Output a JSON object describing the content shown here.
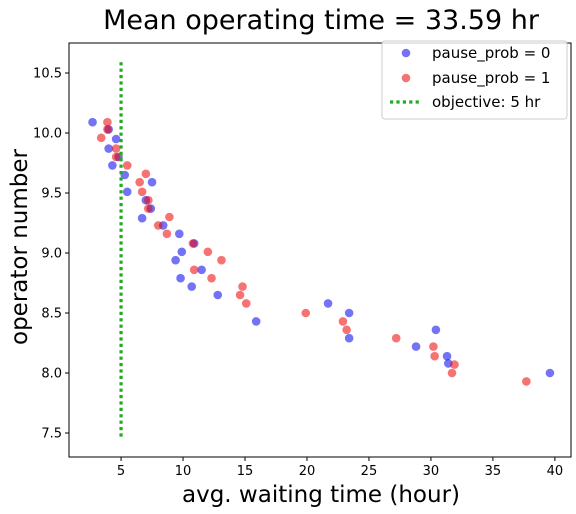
{
  "chart_data": {
    "type": "scatter",
    "title": "Mean operating time = 33.59 hr",
    "xlabel": "avg. waiting time (hour)",
    "ylabel": "operator number",
    "xlim": [
      0.8,
      41.3
    ],
    "ylim": [
      7.3,
      10.75
    ],
    "xticks": [
      5,
      10,
      15,
      20,
      25,
      30,
      35,
      40
    ],
    "yticks": [
      7.5,
      8.0,
      8.5,
      9.0,
      9.5,
      10.0,
      10.5
    ],
    "xtick_labels": [
      "5",
      "10",
      "15",
      "20",
      "25",
      "30",
      "35",
      "40"
    ],
    "ytick_labels": [
      "7.5",
      "8.0",
      "8.5",
      "9.0",
      "9.5",
      "10.0",
      "10.5"
    ],
    "grid": false,
    "legend_position": "top-right",
    "series": [
      {
        "name": "pause_prob = 0",
        "color": "#0000ee",
        "points": [
          [
            2.7,
            10.09
          ],
          [
            4.0,
            10.03
          ],
          [
            4.6,
            9.95
          ],
          [
            4.0,
            9.87
          ],
          [
            4.8,
            9.8
          ],
          [
            4.3,
            9.73
          ],
          [
            5.3,
            9.65
          ],
          [
            5.5,
            9.51
          ],
          [
            7.5,
            9.59
          ],
          [
            7.0,
            9.44
          ],
          [
            7.4,
            9.37
          ],
          [
            6.7,
            9.29
          ],
          [
            8.4,
            9.23
          ],
          [
            9.7,
            9.16
          ],
          [
            10.9,
            9.08
          ],
          [
            9.9,
            9.01
          ],
          [
            9.4,
            8.94
          ],
          [
            11.5,
            8.86
          ],
          [
            9.8,
            8.79
          ],
          [
            10.7,
            8.72
          ],
          [
            12.8,
            8.65
          ],
          [
            15.9,
            8.43
          ],
          [
            21.7,
            8.58
          ],
          [
            23.4,
            8.5
          ],
          [
            23.4,
            8.29
          ],
          [
            28.8,
            8.22
          ],
          [
            30.4,
            8.36
          ],
          [
            31.3,
            8.14
          ],
          [
            31.4,
            8.08
          ],
          [
            39.6,
            8.0
          ]
        ]
      },
      {
        "name": "pause_prob = 1",
        "color": "#ee0000",
        "points": [
          [
            3.9,
            10.09
          ],
          [
            3.9,
            10.03
          ],
          [
            3.4,
            9.96
          ],
          [
            4.6,
            9.87
          ],
          [
            4.6,
            9.8
          ],
          [
            5.5,
            9.73
          ],
          [
            7.0,
            9.66
          ],
          [
            6.5,
            9.59
          ],
          [
            6.7,
            9.51
          ],
          [
            7.2,
            9.44
          ],
          [
            7.2,
            9.37
          ],
          [
            8.9,
            9.3
          ],
          [
            8.0,
            9.23
          ],
          [
            8.7,
            9.16
          ],
          [
            10.8,
            9.08
          ],
          [
            12.0,
            9.01
          ],
          [
            13.1,
            8.94
          ],
          [
            10.9,
            8.86
          ],
          [
            12.3,
            8.79
          ],
          [
            14.8,
            8.72
          ],
          [
            14.6,
            8.65
          ],
          [
            15.1,
            8.58
          ],
          [
            19.9,
            8.5
          ],
          [
            22.9,
            8.43
          ],
          [
            23.2,
            8.36
          ],
          [
            27.2,
            8.29
          ],
          [
            30.2,
            8.22
          ],
          [
            30.3,
            8.14
          ],
          [
            31.9,
            8.07
          ],
          [
            31.7,
            8.0
          ],
          [
            37.7,
            7.93
          ]
        ]
      }
    ],
    "reference_lines": [
      {
        "name": "objective: 5 hr",
        "orientation": "vertical",
        "x": 5,
        "y_range": [
          7.47,
          10.59
        ],
        "color": "#22aa22",
        "style": "dotted"
      }
    ]
  }
}
